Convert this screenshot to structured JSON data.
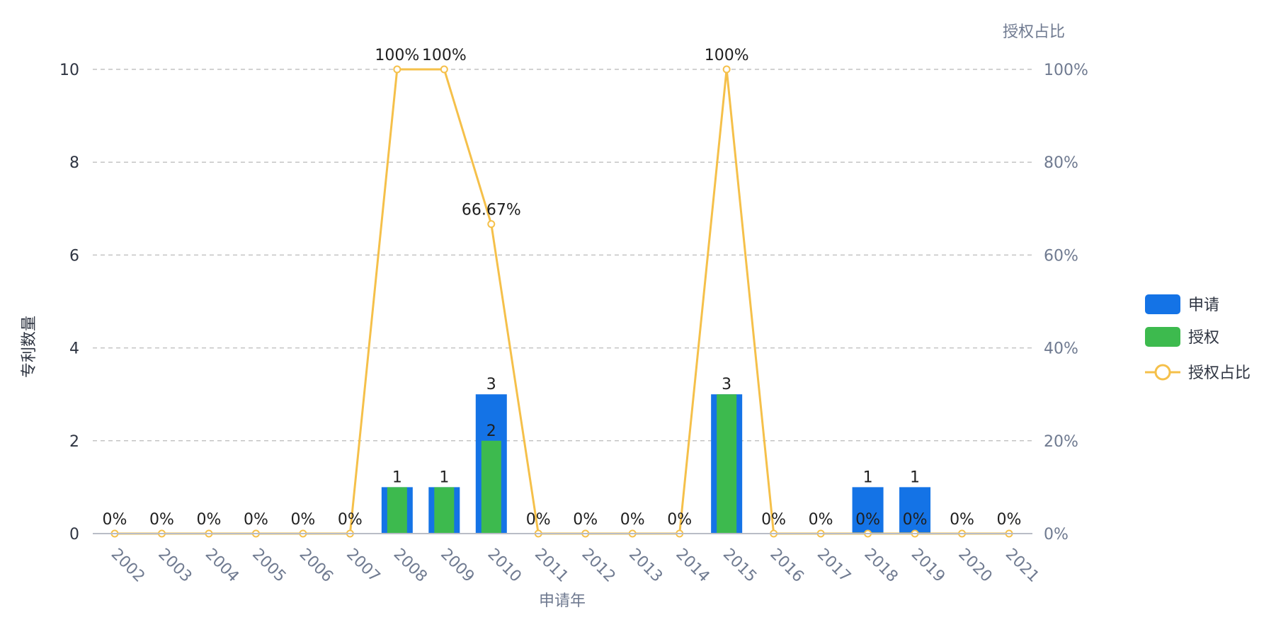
{
  "chart_data": {
    "type": "bar",
    "categories": [
      "2002",
      "2003",
      "2004",
      "2005",
      "2006",
      "2007",
      "2008",
      "2009",
      "2010",
      "2011",
      "2012",
      "2013",
      "2014",
      "2015",
      "2016",
      "2017",
      "2018",
      "2019",
      "2020",
      "2021"
    ],
    "series": [
      {
        "name": "申请",
        "type": "bar",
        "color": "#1473e6",
        "values": [
          0,
          0,
          0,
          0,
          0,
          0,
          1,
          1,
          3,
          0,
          0,
          0,
          0,
          3,
          0,
          0,
          1,
          1,
          0,
          0
        ]
      },
      {
        "name": "授权",
        "type": "bar",
        "color": "#3dba4e",
        "values": [
          0,
          0,
          0,
          0,
          0,
          0,
          1,
          1,
          2,
          0,
          0,
          0,
          0,
          3,
          0,
          0,
          0,
          0,
          0,
          0
        ]
      },
      {
        "name": "授权占比",
        "type": "line",
        "axis": "right",
        "color": "#f5c04a",
        "values": [
          0,
          0,
          0,
          0,
          0,
          0,
          100,
          100,
          66.67,
          0,
          0,
          0,
          0,
          100,
          0,
          0,
          0,
          0,
          0,
          0
        ]
      }
    ],
    "bar_labels": [
      "",
      "",
      "",
      "",
      "",
      "",
      "1",
      "1",
      "3",
      "",
      "",
      "",
      "",
      "3",
      "",
      "",
      "1",
      "1",
      "",
      ""
    ],
    "inner_labels": [
      "",
      "",
      "",
      "",
      "",
      "",
      "",
      "",
      "2",
      "",
      "",
      "",
      "",
      "",
      "",
      "",
      "",
      "",
      "",
      ""
    ],
    "line_labels": [
      "0%",
      "0%",
      "0%",
      "0%",
      "0%",
      "0%",
      "100%",
      "100%",
      "66.67%",
      "0%",
      "0%",
      "0%",
      "0%",
      "100%",
      "0%",
      "0%",
      "0%",
      "0%",
      "0%",
      "0%"
    ],
    "xlabel": "申请年",
    "ylabel": "专利数量",
    "y2label": "授权占比",
    "ylim": [
      0,
      10
    ],
    "y2lim": [
      0,
      100
    ],
    "yticks": [
      "0",
      "2",
      "4",
      "6",
      "8",
      "10"
    ],
    "y2ticks": [
      "0%",
      "20%",
      "40%",
      "60%",
      "80%",
      "100%"
    ],
    "grid": true,
    "legend_position": "right",
    "legend": [
      "申请",
      "授权",
      "授权占比"
    ]
  }
}
